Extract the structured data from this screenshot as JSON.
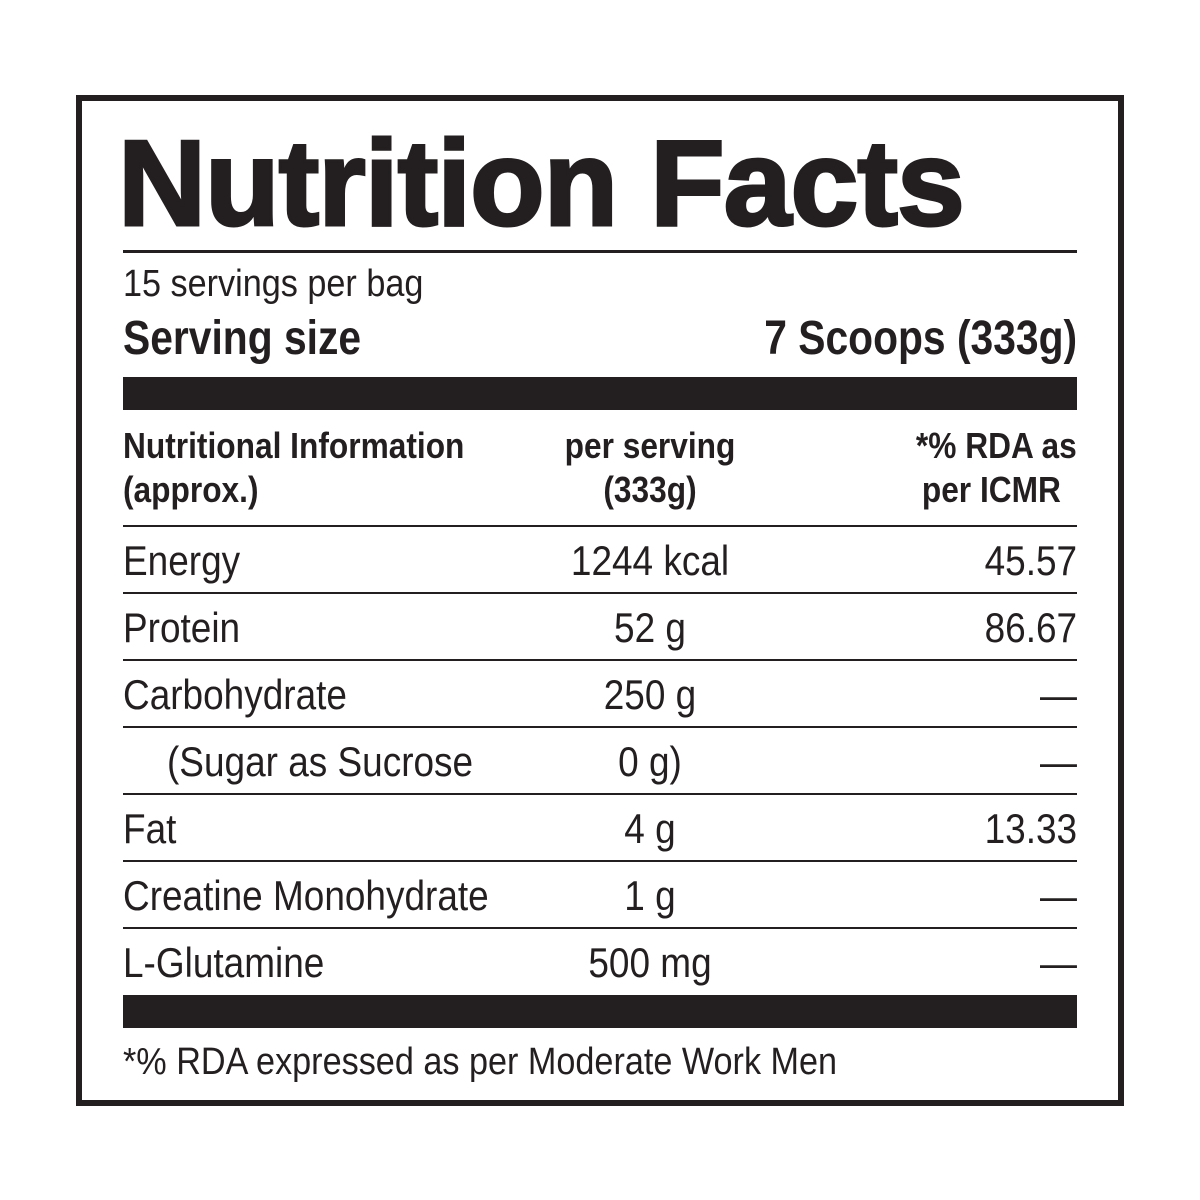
{
  "title": "Nutrition Facts",
  "servings_per_container": "15 servings per bag",
  "serving_size": {
    "label": "Serving size",
    "value": "7 Scoops (333g)"
  },
  "table": {
    "headers": [
      [
        "Nutritional Information",
        "(approx.)"
      ],
      [
        "per serving",
        "(333g)"
      ],
      [
        "*% RDA as",
        "per ICMR"
      ]
    ],
    "rows": [
      {
        "name": "Energy",
        "amount": "1244 kcal",
        "rda": "45.57"
      },
      {
        "name": "Protein",
        "amount": "52 g",
        "rda": "86.67"
      },
      {
        "name": "Carbohydrate",
        "amount": "250 g",
        "rda": "—"
      },
      {
        "name": "(Sugar as Sucrose",
        "amount": "0 g)",
        "rda": "—"
      },
      {
        "name": "Fat",
        "amount": "4 g",
        "rda": "13.33"
      },
      {
        "name": "Creatine Monohydrate",
        "amount": "1 g",
        "rda": "—"
      },
      {
        "name": "L-Glutamine",
        "amount": "500 mg",
        "rda": "—"
      }
    ]
  },
  "footnote": "*% RDA expressed as per Moderate Work Men"
}
